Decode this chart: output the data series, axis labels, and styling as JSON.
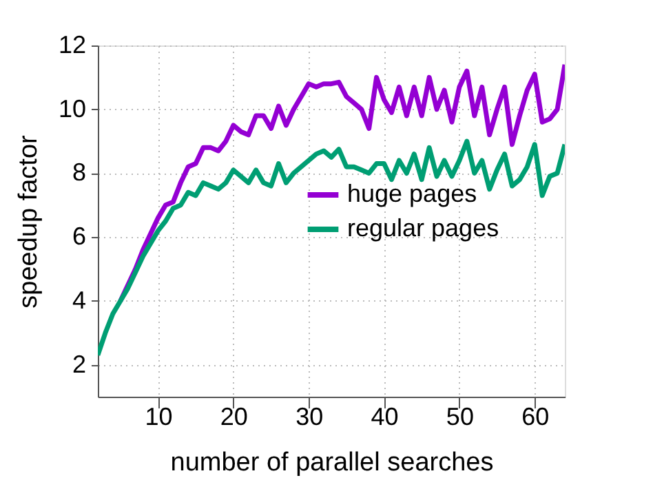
{
  "chart_data": {
    "type": "line",
    "xlabel": "number of parallel searches",
    "ylabel": "speedup factor",
    "x": [
      2,
      3,
      4,
      5,
      6,
      7,
      8,
      9,
      10,
      11,
      12,
      13,
      14,
      15,
      16,
      17,
      18,
      19,
      20,
      21,
      22,
      23,
      24,
      25,
      26,
      27,
      28,
      29,
      30,
      31,
      32,
      33,
      34,
      35,
      36,
      37,
      38,
      39,
      40,
      41,
      42,
      43,
      44,
      45,
      46,
      47,
      48,
      49,
      50,
      51,
      52,
      53,
      54,
      55,
      56,
      57,
      58,
      59,
      60,
      61,
      62,
      63,
      64
    ],
    "series": [
      {
        "name": "huge pages",
        "color": "#9400d3",
        "values": [
          null,
          null,
          null,
          4.0,
          4.5,
          5.0,
          5.6,
          6.1,
          6.6,
          7.0,
          7.1,
          7.7,
          8.2,
          8.3,
          8.8,
          8.8,
          8.7,
          9.0,
          9.5,
          9.3,
          9.2,
          9.8,
          9.8,
          9.4,
          10.1,
          9.5,
          10.0,
          10.4,
          10.8,
          10.7,
          10.8,
          10.8,
          10.85,
          10.4,
          10.2,
          10.0,
          9.4,
          11.0,
          10.3,
          9.9,
          10.7,
          9.8,
          10.7,
          9.8,
          11.0,
          10.0,
          10.6,
          9.6,
          10.7,
          11.2,
          9.8,
          10.7,
          9.2,
          10.0,
          10.7,
          8.9,
          9.8,
          10.6,
          11.1,
          9.6,
          9.7,
          10.0,
          11.4
        ]
      },
      {
        "name": "regular pages",
        "color": "#009e73",
        "values": [
          2.3,
          3.0,
          3.6,
          4.0,
          4.4,
          4.9,
          5.4,
          5.8,
          6.2,
          6.5,
          6.9,
          7.0,
          7.4,
          7.3,
          7.7,
          7.6,
          7.5,
          7.7,
          8.1,
          7.9,
          7.7,
          8.1,
          7.7,
          7.6,
          8.3,
          7.7,
          8.0,
          8.2,
          8.4,
          8.6,
          8.7,
          8.5,
          8.75,
          8.2,
          8.2,
          8.1,
          8.0,
          8.3,
          8.3,
          7.8,
          8.4,
          8.0,
          8.6,
          7.8,
          8.8,
          7.9,
          8.4,
          7.9,
          8.4,
          9.0,
          8.0,
          8.4,
          7.5,
          8.1,
          8.6,
          7.6,
          7.8,
          8.2,
          8.9,
          7.3,
          7.9,
          8.0,
          8.9
        ]
      }
    ],
    "xlim": [
      2,
      64
    ],
    "ylim": [
      1,
      12
    ],
    "xticks": [
      10,
      20,
      30,
      40,
      50,
      60
    ],
    "yticks": [
      2,
      4,
      6,
      8,
      10,
      12
    ],
    "grid": true,
    "legend": "right",
    "line_style": "solid",
    "marker": "none"
  }
}
